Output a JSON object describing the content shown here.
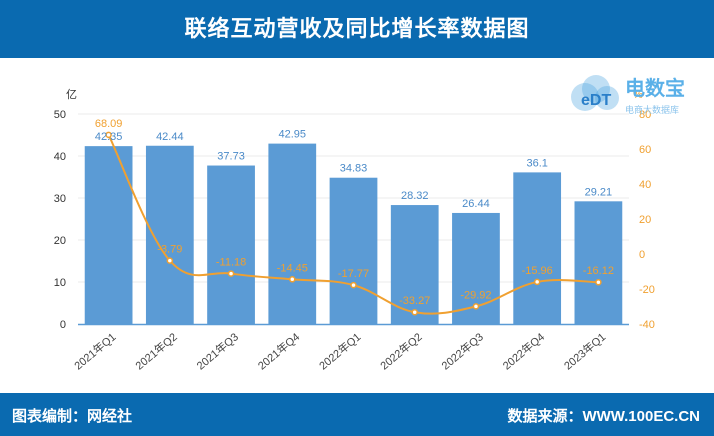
{
  "header": {
    "title": "联络互动营收及同比增长率数据图"
  },
  "footer": {
    "left_label": "图表编制：网经社",
    "right_label": "数据来源：WWW.100EC.CN"
  },
  "logo": {
    "mark": "eDT",
    "name": "电数宝",
    "tagline": "电商大数据库"
  },
  "colors": {
    "header_bg": "#0a6ab0",
    "bar": "#5b9bd5",
    "line": "#f0a030",
    "axis_left": "#333333"
  },
  "chart_data": {
    "type": "bar",
    "categories": [
      "2021年Q1",
      "2021年Q2",
      "2021年Q3",
      "2021年Q4",
      "2022年Q1",
      "2022年Q2",
      "2022年Q3",
      "2022年Q4",
      "2023年Q1"
    ],
    "series": [
      {
        "values": [
          42.35,
          42.44,
          37.73,
          42.95,
          34.83,
          28.32,
          26.44,
          36.1,
          29.21
        ],
        "axis": "left",
        "type": "bar"
      },
      {
        "values": [
          68.09,
          -3.79,
          -11.18,
          -14.45,
          -17.77,
          -33.27,
          -29.92,
          -15.96,
          -16.12
        ],
        "axis": "right",
        "type": "line"
      }
    ],
    "yunit_left": "亿",
    "yunit_right": "%",
    "ylim_left": [
      0,
      50
    ],
    "yticks_left": [
      0,
      10,
      20,
      30,
      40,
      50
    ],
    "ylim_right": [
      -40,
      80
    ],
    "yticks_right": [
      -40,
      -20,
      0,
      20,
      40,
      60,
      80
    ],
    "grid": true
  }
}
